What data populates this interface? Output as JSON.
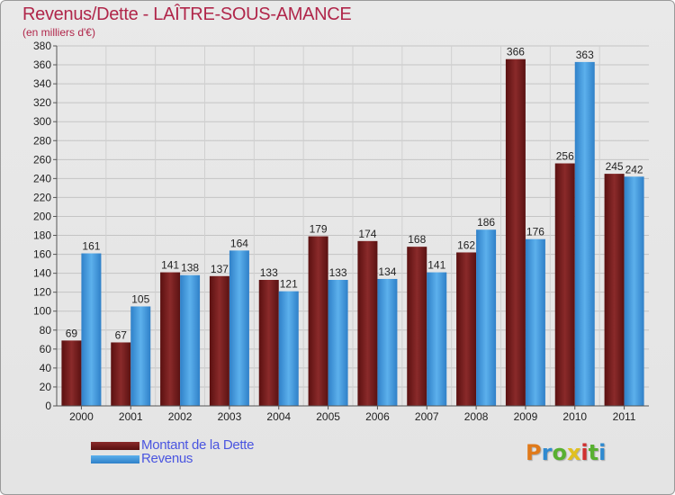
{
  "title": "Revenus/Dette - LAÎTRE-SOUS-AMANCE",
  "subtitle": "(en milliers d'€)",
  "logo": {
    "letters": [
      "P",
      "r",
      "o",
      "x",
      "i",
      "t",
      "i"
    ],
    "colors": [
      "#e07a1a",
      "#2f8ad0",
      "#58b030",
      "#e0c020",
      "#d03030",
      "#58b030",
      "#2f8ad0"
    ]
  },
  "colors": {
    "debt": "#7a2525",
    "revenue": "#4aa0e0"
  },
  "chart_data": {
    "type": "bar",
    "title": "Revenus/Dette - LAÎTRE-SOUS-AMANCE",
    "subtitle": "(en milliers d'€)",
    "xlabel": "",
    "ylabel": "",
    "ylim": [
      0,
      380
    ],
    "ytick_step": 20,
    "grid": true,
    "legend_position": "bottom-left",
    "categories": [
      "2000",
      "2001",
      "2002",
      "2003",
      "2004",
      "2005",
      "2006",
      "2007",
      "2008",
      "2009",
      "2010",
      "2011"
    ],
    "series": [
      {
        "name": "Montant de la Dette",
        "values": [
          69,
          67,
          141,
          137,
          133,
          179,
          174,
          168,
          162,
          366,
          256,
          245
        ]
      },
      {
        "name": "Revenus",
        "values": [
          161,
          105,
          138,
          164,
          121,
          133,
          134,
          141,
          186,
          176,
          363,
          242
        ]
      }
    ]
  }
}
